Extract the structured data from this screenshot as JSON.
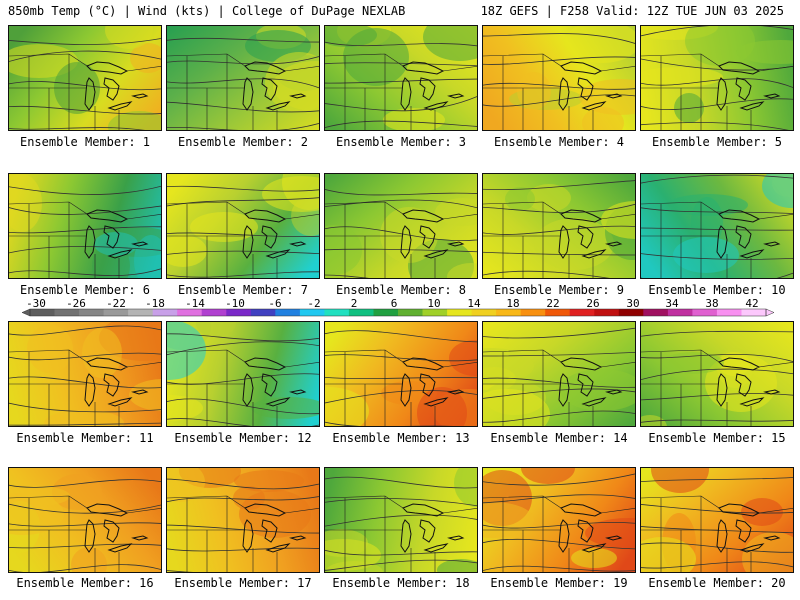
{
  "header": {
    "left": "850mb Temp (°C) | Wind (kts) | College of DuPage NEXLAB",
    "right": "18Z GEFS | F258 Valid: 12Z TUE JUN 03 2025"
  },
  "panels": [
    {
      "label": "Ensemble Member: 1",
      "palette": "green-orange"
    },
    {
      "label": "Ensemble Member: 2",
      "palette": "green"
    },
    {
      "label": "Ensemble Member: 3",
      "palette": "green-yellow"
    },
    {
      "label": "Ensemble Member: 4",
      "palette": "orange-yellow"
    },
    {
      "label": "Ensemble Member: 5",
      "palette": "yellow-green"
    },
    {
      "label": "Ensemble Member: 6",
      "palette": "green-cyan"
    },
    {
      "label": "Ensemble Member: 7",
      "palette": "yellow-cyan"
    },
    {
      "label": "Ensemble Member: 8",
      "palette": "green-yellow"
    },
    {
      "label": "Ensemble Member: 9",
      "palette": "yellow-green"
    },
    {
      "label": "Ensemble Member: 10",
      "palette": "cyan-green"
    },
    {
      "label": "Ensemble Member: 11",
      "palette": "yellow-orange"
    },
    {
      "label": "Ensemble Member: 12",
      "palette": "yellow-cyan"
    },
    {
      "label": "Ensemble Member: 13",
      "palette": "orange-red"
    },
    {
      "label": "Ensemble Member: 14",
      "palette": "yellow-green"
    },
    {
      "label": "Ensemble Member: 15",
      "palette": "green-yellow"
    },
    {
      "label": "Ensemble Member: 16",
      "palette": "yellow-orange"
    },
    {
      "label": "Ensemble Member: 17",
      "palette": "yellow-orange"
    },
    {
      "label": "Ensemble Member: 18",
      "palette": "green-yellow"
    },
    {
      "label": "Ensemble Member: 19",
      "palette": "orange-red"
    },
    {
      "label": "Ensemble Member: 20",
      "palette": "orange-red"
    }
  ],
  "colorbar": {
    "labels": [
      "-30",
      "-26",
      "-22",
      "-18",
      "-14",
      "-10",
      "-6",
      "-2",
      "2",
      "6",
      "10",
      "14",
      "18",
      "22",
      "26",
      "30",
      "34",
      "38",
      "42"
    ],
    "colors": [
      "#5e5e5e",
      "#727272",
      "#868686",
      "#9a9a9a",
      "#b4b4b4",
      "#c8a0e8",
      "#e070e0",
      "#b040d0",
      "#7a28c8",
      "#4040c0",
      "#2080e0",
      "#20c8f0",
      "#20e0c0",
      "#10c080",
      "#20a040",
      "#60b030",
      "#a0d028",
      "#e6e61e",
      "#f0d020",
      "#f8b818",
      "#f89010",
      "#f05808",
      "#e02020",
      "#c01010",
      "#900000",
      "#a01060",
      "#c030a0",
      "#e060d0",
      "#f890f0",
      "#fcc8fc"
    ],
    "min": -30,
    "max": 42,
    "step": 4
  },
  "palettes": {
    "green-orange": [
      "#4fa03a",
      "#8cc832",
      "#d8dc20",
      "#f0b020"
    ],
    "green": [
      "#2aa050",
      "#5cb04a",
      "#9cc838",
      "#d6dc22"
    ],
    "green-yellow": [
      "#4fa83c",
      "#8cc832",
      "#c8d828",
      "#e6e61e"
    ],
    "orange-yellow": [
      "#f0a820",
      "#f0c020",
      "#e6e61e",
      "#b8d030"
    ],
    "yellow-green": [
      "#e6e61e",
      "#c8d828",
      "#8cc832",
      "#4fa83c"
    ],
    "green-cyan": [
      "#e0d820",
      "#8cc832",
      "#3aa048",
      "#20c0b0"
    ],
    "yellow-cyan": [
      "#e6e61e",
      "#b8d030",
      "#58b040",
      "#20d0d0"
    ],
    "cyan-green": [
      "#20c8c0",
      "#2ab070",
      "#6cb840",
      "#c8d828"
    ],
    "yellow-orange": [
      "#e6d81e",
      "#f0c020",
      "#f0a020",
      "#e87818"
    ],
    "orange-red": [
      "#e6e61e",
      "#f0b820",
      "#f08818",
      "#e04818"
    ]
  }
}
